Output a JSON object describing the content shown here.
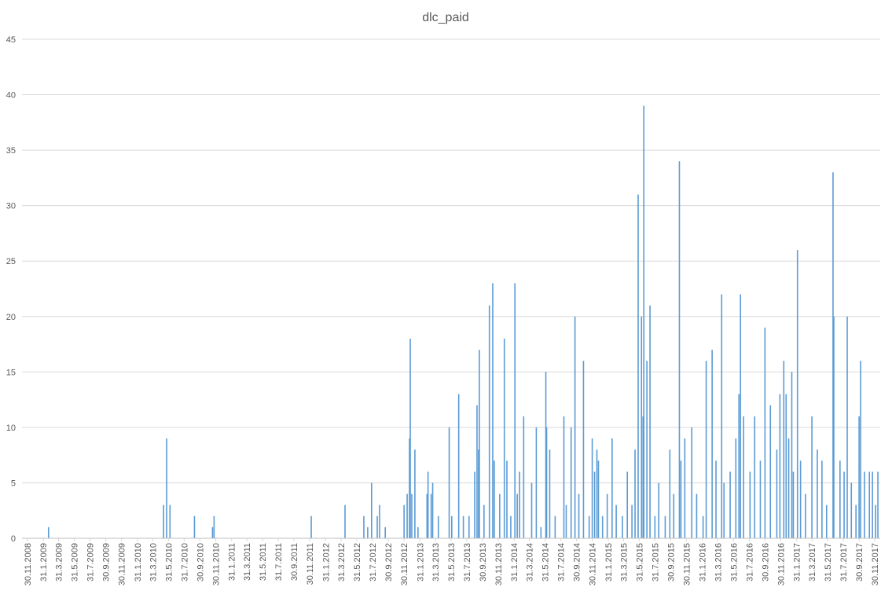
{
  "chart_data": {
    "type": "bar",
    "title": "dlc_paid",
    "color": "#5b9bd5",
    "grid": true,
    "ylim": [
      0,
      45
    ],
    "yticks": [
      0,
      5,
      10,
      15,
      20,
      25,
      30,
      35,
      40,
      45
    ],
    "xlim": [
      "9.11.2008",
      "21.12.2017"
    ],
    "xticks": [
      "30.11.2008",
      "31.1.2009",
      "31.3.2009",
      "31.5.2009",
      "31.7.2009",
      "30.9.2009",
      "30.11.2009",
      "31.1.2010",
      "31.3.2010",
      "31.5.2010",
      "31.7.2010",
      "30.9.2010",
      "30.11.2010",
      "31.1.2011",
      "31.3.2011",
      "31.5.2011",
      "31.7.2011",
      "30.9.2011",
      "30.11.2011",
      "31.1.2012",
      "31.3.2012",
      "31.5.2012",
      "31.7.2012",
      "30.9.2012",
      "30.11.2012",
      "31.1.2013",
      "31.3.2013",
      "31.5.2013",
      "31.7.2013",
      "30.9.2013",
      "30.11.2013",
      "31.1.2014",
      "31.3.2014",
      "31.5.2014",
      "31.7.2014",
      "30.9.2014",
      "30.11.2014",
      "31.1.2015",
      "31.3.2015",
      "31.5.2015",
      "31.7.2015",
      "30.9.2015",
      "30.11.2015",
      "31.1.2016",
      "31.3.2016",
      "31.5.2016",
      "31.7.2016",
      "30.9.2016",
      "30.11.2016",
      "31.1.2017",
      "31.3.2017",
      "31.5.2017",
      "31.7.2017",
      "30.9.2017",
      "30.11.2017"
    ],
    "x": [
      "20.2.2009",
      "12.5.2010",
      "24.5.2010",
      "6.6.2010",
      "9.9.2010",
      "18.11.2010",
      "24.11.2010",
      "6.12.2011",
      "15.4.2012",
      "27.6.2012",
      "12.7.2012",
      "27.7.2012",
      "18.8.2012",
      "27.8.2012",
      "18.9.2012",
      "30.11.2012",
      "12.12.2012",
      "21.12.2012",
      "24.12.2012",
      "30.12.2012",
      "11.1.2013",
      "23.1.2013",
      "27.2.2013",
      "3.3.2013",
      "15.3.2013",
      "21.3.2013",
      "12.4.2013",
      "24.5.2013",
      "3.6.2013",
      "30.6.2013",
      "18.7.2013",
      "9.8.2013",
      "31.8.2013",
      "9.9.2013",
      "15.9.2013",
      "18.9.2013",
      "6.10.2013",
      "27.10.2013",
      "9.11.2013",
      "15.11.2013",
      "6.12.2013",
      "24.12.2013",
      "3.1.2014",
      "18.1.2014",
      "3.2.2014",
      "12.2.2014",
      "21.2.2014",
      "9.3.2014",
      "9.4.2014",
      "27.4.2014",
      "15.5.2014",
      "3.6.2014",
      "6.6.2014",
      "18.6.2014",
      "9.7.2014",
      "12.8.2014",
      "21.8.2014",
      "9.9.2014",
      "24.9.2014",
      "9.10.2014",
      "27.10.2014",
      "18.11.2014",
      "30.11.2014",
      "9.12.2014",
      "18.12.2014",
      "24.12.2014",
      "9.1.2015",
      "27.1.2015",
      "15.2.2015",
      "3.3.2015",
      "27.3.2015",
      "15.4.2015",
      "3.5.2015",
      "15.5.2015",
      "27.5.2015",
      "9.6.2015",
      "15.6.2015",
      "18.6.2015",
      "30.6.2015",
      "12.7.2015",
      "31.7.2015",
      "15.8.2015",
      "9.9.2015",
      "27.9.2015",
      "12.10.2015",
      "3.11.2015",
      "9.11.2015",
      "24.11.2015",
      "21.12.2015",
      "9.1.2016",
      "3.2.2016",
      "15.2.2016",
      "9.3.2016",
      "24.3.2016",
      "15.4.2016",
      "24.4.2016",
      "18.5.2016",
      "9.6.2016",
      "21.6.2016",
      "27.6.2016",
      "9.7.2016",
      "3.8.2016",
      "21.8.2016",
      "12.9.2016",
      "30.9.2016",
      "21.10.2016",
      "15.11.2016",
      "27.11.2016",
      "12.12.2016",
      "21.12.2016",
      "31.12.2016",
      "12.1.2017",
      "18.1.2017",
      "3.2.2017",
      "15.2.2017",
      "6.3.2017",
      "31.3.2017",
      "21.4.2017",
      "9.5.2017",
      "27.5.2017",
      "21.6.2017",
      "24.6.2017",
      "18.7.2017",
      "3.8.2017",
      "15.8.2017",
      "31.8.2017",
      "18.9.2017",
      "30.9.2017",
      "6.10.2017",
      "21.10.2017",
      "9.11.2017",
      "21.11.2017",
      "3.12.2017",
      "12.12.2017"
    ],
    "values": [
      1,
      3,
      9,
      3,
      2,
      1,
      2,
      2,
      3,
      2,
      1,
      5,
      2,
      3,
      1,
      3,
      4,
      9,
      18,
      4,
      8,
      1,
      4,
      6,
      4,
      5,
      2,
      10,
      2,
      13,
      2,
      2,
      6,
      12,
      8,
      17,
      3,
      21,
      23,
      7,
      4,
      18,
      7,
      2,
      23,
      4,
      6,
      11,
      5,
      10,
      1,
      15,
      10,
      8,
      2,
      11,
      3,
      10,
      20,
      4,
      16,
      2,
      9,
      6,
      8,
      7,
      2,
      4,
      9,
      3,
      2,
      6,
      3,
      8,
      31,
      20,
      11,
      39,
      16,
      21,
      2,
      5,
      2,
      8,
      4,
      34,
      7,
      9,
      10,
      4,
      2,
      16,
      17,
      7,
      22,
      5,
      6,
      9,
      13,
      22,
      11,
      6,
      11,
      7,
      19,
      12,
      8,
      13,
      16,
      13,
      9,
      15,
      6,
      26,
      7,
      4,
      11,
      8,
      7,
      3,
      33,
      20,
      7,
      6,
      20,
      5,
      3,
      11,
      16,
      6,
      6,
      6,
      3,
      6
    ]
  }
}
